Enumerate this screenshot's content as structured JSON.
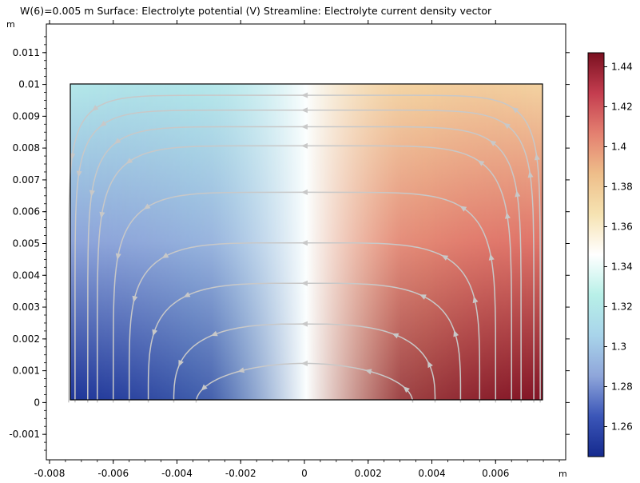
{
  "chart_data": {
    "type": "heatmap",
    "title": "W(6)=0.005 m  Surface: Electrolyte potential (V)  Streamline: Electrolyte current density vector",
    "x_unit": "m",
    "y_unit": "m",
    "xlim": [
      -0.0081,
      0.0082
    ],
    "ylim": [
      -0.0018,
      0.0119
    ],
    "x_ticks": [
      -0.008,
      -0.006,
      -0.004,
      -0.002,
      0,
      0.002,
      0.004,
      0.006
    ],
    "x_tick_labels": [
      "-0.008",
      "-0.006",
      "-0.004",
      "-0.002",
      "0",
      "0.002",
      "0.004",
      "0.006"
    ],
    "y_ticks": [
      -0.001,
      0,
      0.001,
      0.002,
      0.003,
      0.004,
      0.005,
      0.006,
      0.007,
      0.008,
      0.009,
      0.01,
      0.011
    ],
    "y_tick_labels": [
      "-0.001",
      "0",
      "0.001",
      "0.002",
      "0.003",
      "0.004",
      "0.005",
      "0.006",
      "0.007",
      "0.008",
      "0.009",
      "0.01",
      "0.011"
    ],
    "domain": {
      "x": [
        -0.0075,
        0.0075
      ],
      "y": [
        0,
        0.01
      ]
    },
    "surface": {
      "quantity": "Electrolyte potential",
      "min": 1.245,
      "max": 1.447,
      "value_at_domain_corners": {
        "bottom_left": 1.25,
        "top_left": 1.32,
        "top_right": 1.375,
        "bottom_right": 1.445
      },
      "zero_x_value": 1.345
    },
    "colorbar": {
      "range": [
        1.245,
        1.447
      ],
      "ticks": [
        1.26,
        1.28,
        1.3,
        1.32,
        1.34,
        1.36,
        1.38,
        1.4,
        1.42,
        1.44
      ],
      "tick_labels": [
        "1.26",
        "1.28",
        "1.3",
        "1.32",
        "1.34",
        "1.36",
        "1.38",
        "1.4",
        "1.42",
        "1.44"
      ],
      "colors": [
        "#152a8e",
        "#3b56b8",
        "#8fa6da",
        "#a8d4ea",
        "#b8f0e8",
        "#ffffff",
        "#f6e3b2",
        "#eebe8a",
        "#e48070",
        "#c43d4f",
        "#7a1020"
      ]
    },
    "streamlines": {
      "quantity": "Electrolyte current density vector",
      "direction": "from right side up, leftward across the top, down the left side",
      "color": "#c8c8c8",
      "loops": [
        {
          "x_span": [
            -0.0034,
            0.0034
          ],
          "apex_y": 0.00123
        },
        {
          "x_span": [
            -0.0041,
            0.0041
          ],
          "apex_y": 0.00247
        },
        {
          "x_span": [
            -0.0049,
            0.0049
          ],
          "apex_y": 0.00375
        },
        {
          "x_span": [
            -0.0055,
            0.0055
          ],
          "apex_y": 0.00502
        },
        {
          "x_span": [
            -0.006,
            0.006
          ],
          "apex_y": 0.00661
        },
        {
          "x_span": [
            -0.0065,
            0.0065
          ],
          "apex_y": 0.00807
        },
        {
          "x_span": [
            -0.0068,
            0.0068
          ],
          "apex_y": 0.00867
        },
        {
          "x_span": [
            -0.0072,
            0.0072
          ],
          "apex_y": 0.00919
        },
        {
          "x_span": [
            -0.0074,
            0.0074
          ],
          "apex_y": 0.00966
        }
      ]
    }
  }
}
